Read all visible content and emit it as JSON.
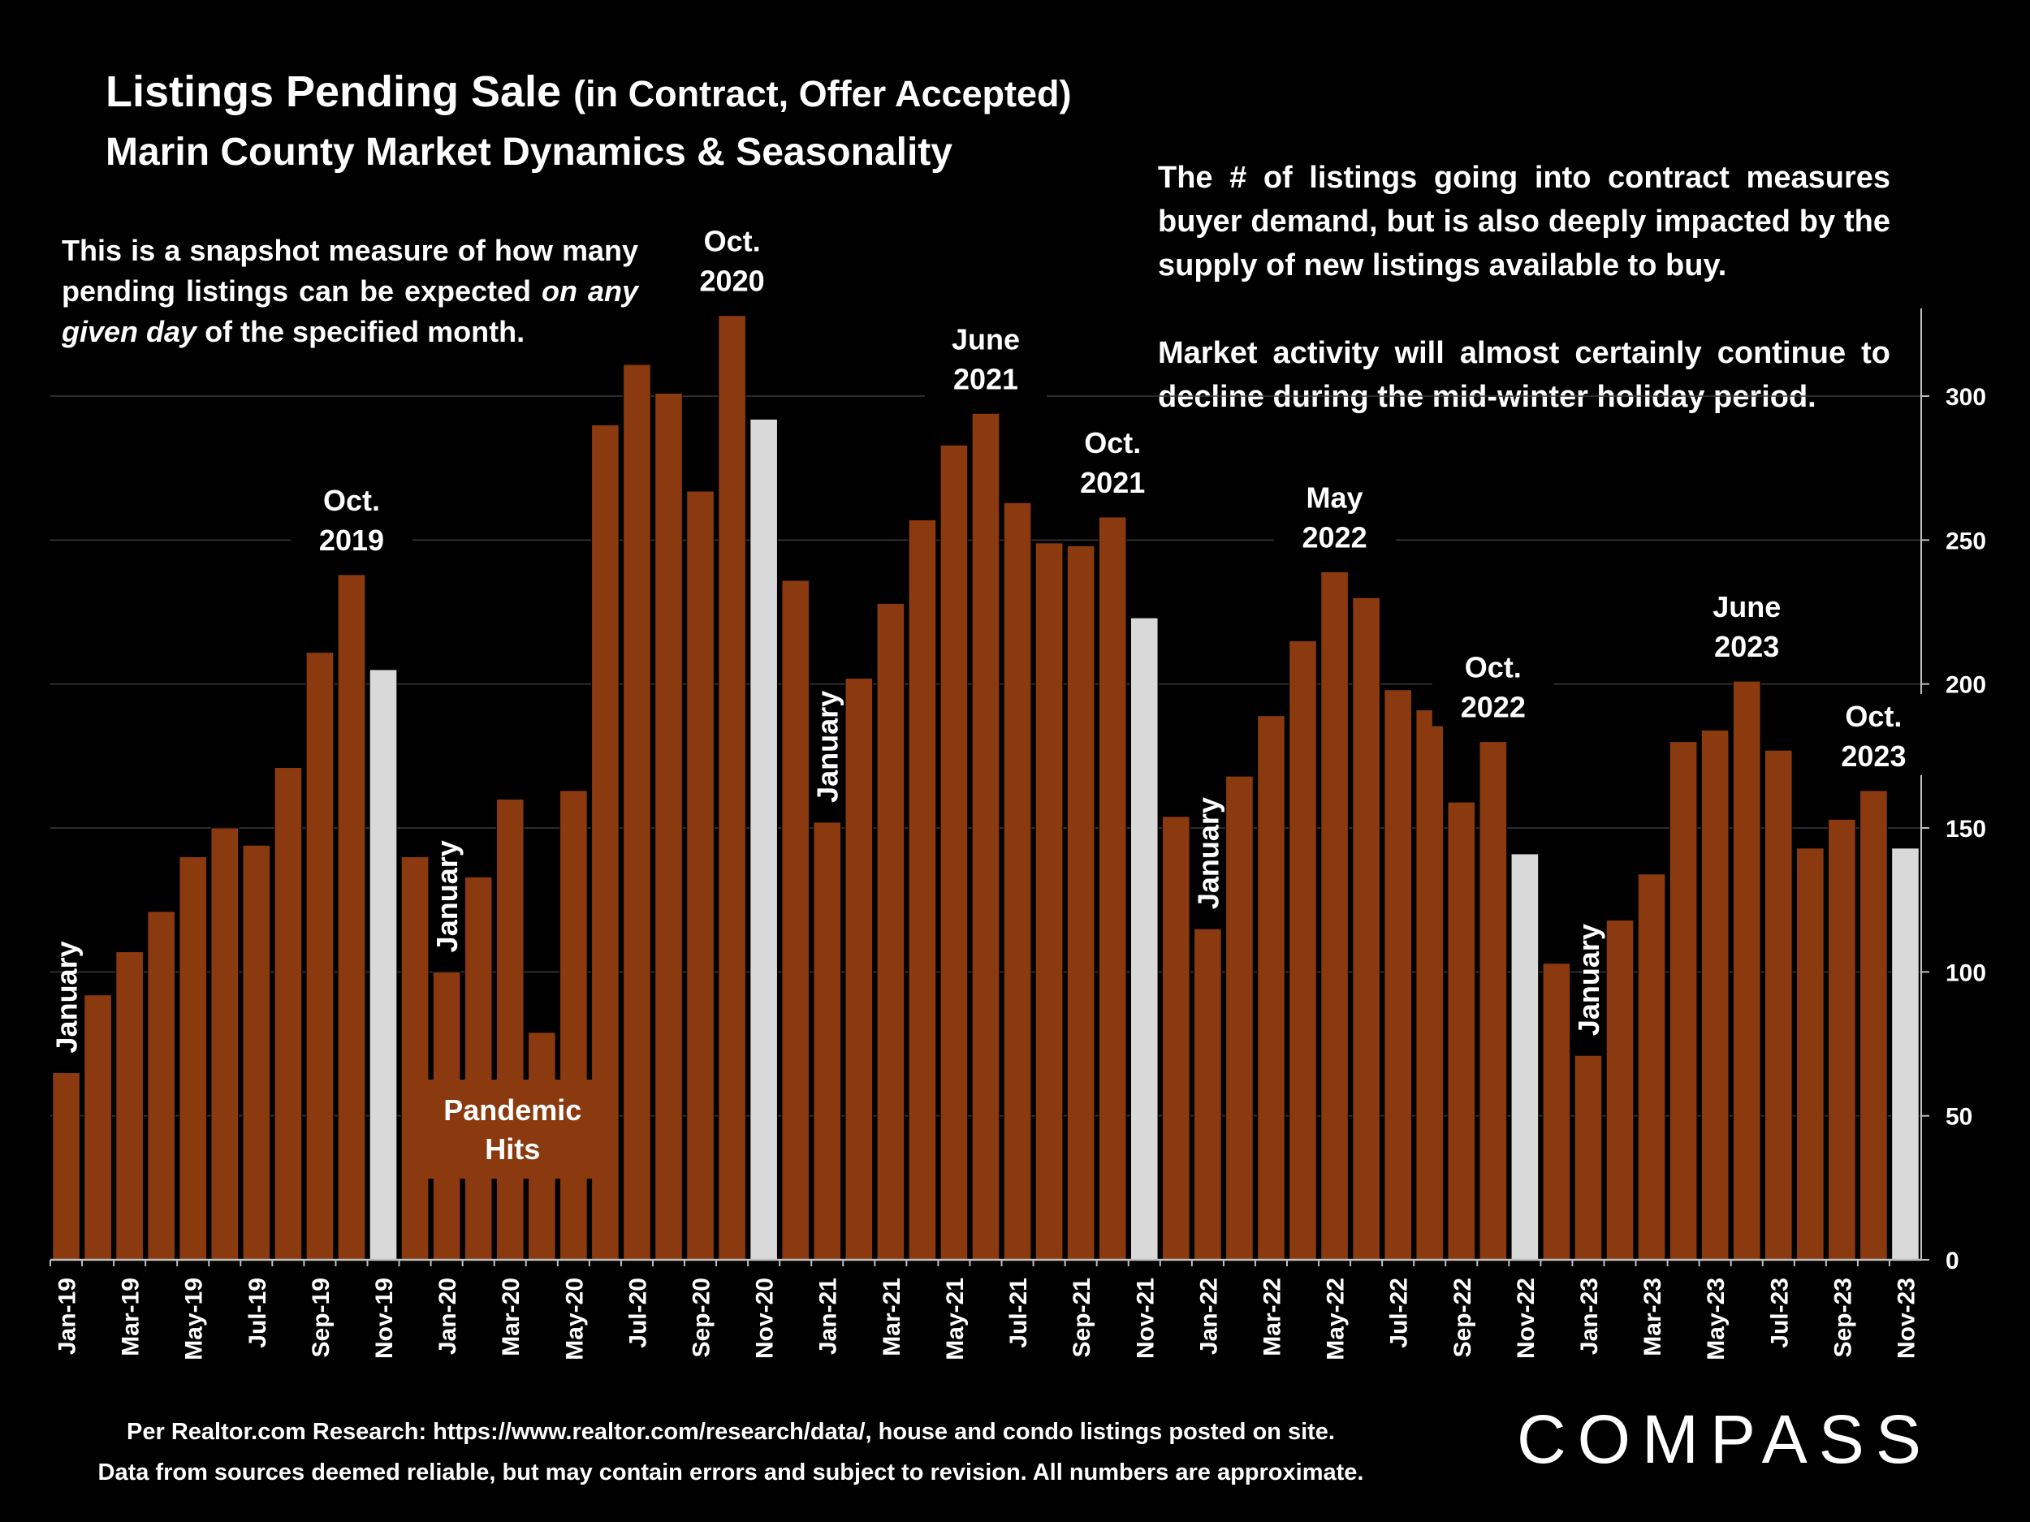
{
  "title": {
    "main": "Listings Pending Sale",
    "paren": "(in Contract, Offer Accepted)",
    "subtitle": "Marin County Market Dynamics & Seasonality"
  },
  "notes": {
    "left_part1": "This is a snapshot measure of how many pending listings can be expected ",
    "left_italic": "on any given day",
    "left_part2": " of the specified month.",
    "right_p1": "The # of listings going into contract measures buyer demand, but is also deeply impacted by the supply of new listings available to buy.",
    "right_p2": "Market activity will almost certainly continue to decline during the mid-winter holiday period."
  },
  "footer": {
    "line1": "Per Realtor.com Research:  https://www.realtor.com/research/data/, house and condo listings posted on site.",
    "line2": "Data from sources deemed reliable, but may contain errors and subject to revision. All numbers are approximate."
  },
  "logo": {
    "text": "COMPASS"
  },
  "colors": {
    "bar": "#8B3A0F",
    "highlight": "#D9D9D9",
    "background": "#000000",
    "grid": "#3A3A3A",
    "text": "#FFFFFF"
  },
  "chart_data": {
    "type": "bar",
    "title": "Listings Pending Sale (in Contract, Offer Accepted)",
    "subtitle": "Marin County Market Dynamics & Seasonality",
    "ylim": [
      0,
      330
    ],
    "y_ticks": [
      0,
      50,
      100,
      150,
      200,
      250,
      300
    ],
    "y_axis_side": "right",
    "grid": true,
    "categories": [
      "Jan-19",
      "Feb-19",
      "Mar-19",
      "Apr-19",
      "May-19",
      "Jun-19",
      "Jul-19",
      "Aug-19",
      "Sep-19",
      "Oct-19",
      "Nov-19",
      "Dec-19",
      "Jan-20",
      "Feb-20",
      "Mar-20",
      "Apr-20",
      "May-20",
      "Jun-20",
      "Jul-20",
      "Aug-20",
      "Sep-20",
      "Oct-20",
      "Nov-20",
      "Dec-20",
      "Jan-21",
      "Feb-21",
      "Mar-21",
      "Apr-21",
      "May-21",
      "Jun-21",
      "Jul-21",
      "Aug-21",
      "Sep-21",
      "Oct-21",
      "Nov-21",
      "Dec-21",
      "Jan-22",
      "Feb-22",
      "Mar-22",
      "Apr-22",
      "May-22",
      "Jun-22",
      "Jul-22",
      "Aug-22",
      "Sep-22",
      "Oct-22",
      "Nov-22",
      "Dec-22",
      "Jan-23",
      "Feb-23",
      "Mar-23",
      "Apr-23",
      "May-23",
      "Jun-23",
      "Jul-23",
      "Aug-23",
      "Sep-23",
      "Oct-23",
      "Nov-23"
    ],
    "x_tick_labels": [
      "Jan-19",
      "Mar-19",
      "May-19",
      "Jul-19",
      "Sep-19",
      "Nov-19",
      "Jan-20",
      "Mar-20",
      "May-20",
      "Jul-20",
      "Sep-20",
      "Nov-20",
      "Jan-21",
      "Mar-21",
      "May-21",
      "Jul-21",
      "Sep-21",
      "Nov-21",
      "Jan-22",
      "Mar-22",
      "May-22",
      "Jul-22",
      "Sep-22",
      "Nov-22",
      "Jan-23",
      "Mar-23",
      "May-23",
      "Jul-23",
      "Sep-23",
      "Nov-23"
    ],
    "values": [
      65,
      92,
      107,
      121,
      140,
      150,
      144,
      171,
      211,
      238,
      205,
      140,
      100,
      133,
      160,
      79,
      163,
      290,
      311,
      301,
      267,
      328,
      292,
      236,
      152,
      202,
      228,
      257,
      283,
      294,
      263,
      249,
      248,
      258,
      223,
      154,
      115,
      168,
      189,
      215,
      239,
      230,
      198,
      191,
      159,
      180,
      141,
      103,
      71,
      118,
      134,
      180,
      184,
      201,
      177,
      143,
      153,
      163,
      143
    ],
    "highlighted": [
      "Nov-19",
      "Nov-20",
      "Nov-21",
      "Nov-22",
      "Nov-23"
    ],
    "annotations": [
      {
        "text": "Oct.\n2019",
        "at": "Oct-19"
      },
      {
        "text": "Oct.\n2020",
        "at": "Oct-20"
      },
      {
        "text": "June\n2021",
        "at": "Jun-21"
      },
      {
        "text": "Oct.\n2021",
        "at": "Oct-21"
      },
      {
        "text": "May\n2022",
        "at": "May-22"
      },
      {
        "text": "Oct.\n2022",
        "at": "Oct-22"
      },
      {
        "text": "June\n2023",
        "at": "Jun-23"
      },
      {
        "text": "Oct.\n2023",
        "at": "Oct-23"
      },
      {
        "text": "Pandemic\nHits",
        "at": "Mar-20"
      },
      {
        "text": "January",
        "at": "Jan-19",
        "vertical": true
      },
      {
        "text": "January",
        "at": "Jan-20",
        "vertical": true
      },
      {
        "text": "January",
        "at": "Jan-21",
        "vertical": true
      },
      {
        "text": "January",
        "at": "Jan-22",
        "vertical": true
      },
      {
        "text": "January",
        "at": "Jan-23",
        "vertical": true
      }
    ]
  }
}
